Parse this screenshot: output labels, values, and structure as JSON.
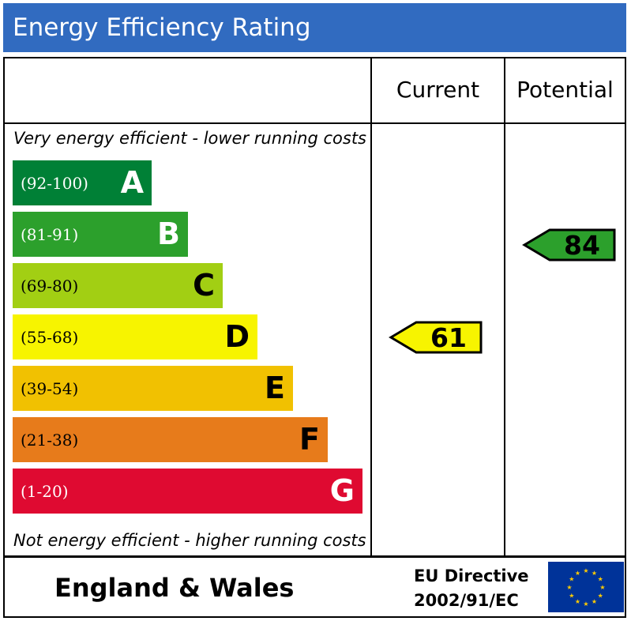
{
  "header": {
    "title": "Energy Efficiency Rating"
  },
  "columns": {
    "current": "Current",
    "potential": "Potential"
  },
  "captions": {
    "top": "Very energy efficient - lower running costs",
    "bottom": "Not energy efficient - higher running costs"
  },
  "chart_data": {
    "type": "bar",
    "title": "Energy Efficiency Rating",
    "bands": [
      {
        "letter": "A",
        "range": "(92-100)",
        "min": 92,
        "max": 100,
        "color": "#008036",
        "text_color": "#ffffff"
      },
      {
        "letter": "B",
        "range": "(81-91)",
        "min": 81,
        "max": 91,
        "color": "#2ca02c",
        "text_color": "#ffffff"
      },
      {
        "letter": "C",
        "range": "(69-80)",
        "min": 69,
        "max": 80,
        "color": "#a2cf13",
        "text_color": "#000000"
      },
      {
        "letter": "D",
        "range": "(55-68)",
        "min": 55,
        "max": 68,
        "color": "#f7f400",
        "text_color": "#000000"
      },
      {
        "letter": "E",
        "range": "(39-54)",
        "min": 39,
        "max": 54,
        "color": "#f1c101",
        "text_color": "#000000"
      },
      {
        "letter": "F",
        "range": "(21-38)",
        "min": 21,
        "max": 38,
        "color": "#e77b1b",
        "text_color": "#000000"
      },
      {
        "letter": "G",
        "range": "(1-20)",
        "min": 1,
        "max": 20,
        "color": "#df0a31",
        "text_color": "#ffffff"
      }
    ],
    "ratings": {
      "current": {
        "value": 61,
        "band": "D",
        "color": "#f7f400"
      },
      "potential": {
        "value": 84,
        "band": "B",
        "color": "#2ca02c"
      }
    }
  },
  "footer": {
    "region": "England & Wales",
    "directive_line1": "EU Directive",
    "directive_line2": "2002/91/EC",
    "flag_color": "#003399",
    "star_color": "#ffcc00"
  }
}
